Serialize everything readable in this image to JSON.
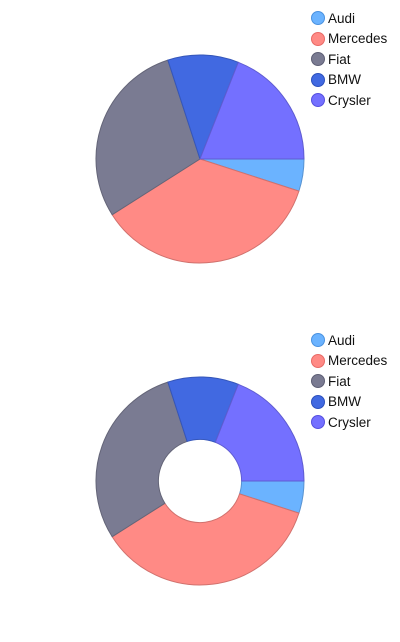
{
  "chart_data": [
    {
      "type": "pie",
      "categories": [
        "Audi",
        "Mercedes",
        "Fiat",
        "BMW",
        "Crysler"
      ],
      "values": [
        5,
        36,
        29,
        11,
        19
      ],
      "colors": [
        "#6bb3ff",
        "#ff8a85",
        "#7a7b92",
        "#4169e1",
        "#7470ff"
      ],
      "legend": {
        "position": "top-right",
        "labels": [
          "Audi",
          "Mercedes",
          "Fiat",
          "BMW",
          "Crysler"
        ]
      },
      "start_angle_deg": 0,
      "direction": "clockwise",
      "inner_radius_ratio": 0
    },
    {
      "type": "pie",
      "variant": "donut",
      "categories": [
        "Audi",
        "Mercedes",
        "Fiat",
        "BMW",
        "Crysler"
      ],
      "values": [
        5,
        36,
        29,
        11,
        19
      ],
      "colors": [
        "#6bb3ff",
        "#ff8a85",
        "#7a7b92",
        "#4169e1",
        "#7470ff"
      ],
      "legend": {
        "position": "top-right",
        "labels": [
          "Audi",
          "Mercedes",
          "Fiat",
          "BMW",
          "Crysler"
        ]
      },
      "start_angle_deg": 0,
      "direction": "clockwise",
      "inner_radius_ratio": 0.4
    }
  ]
}
